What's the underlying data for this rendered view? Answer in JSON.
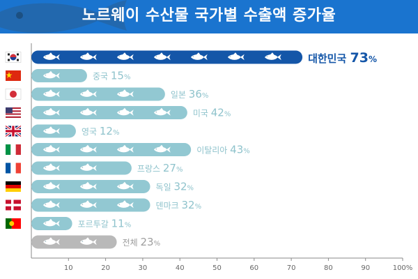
{
  "chart_data": {
    "type": "bar",
    "orientation": "horizontal",
    "title": "노르웨이 수산물 국가별 수출액 증가율",
    "categories": [
      "대한민국",
      "중국",
      "일본",
      "미국",
      "영국",
      "이탈리아",
      "프랑스",
      "독일",
      "덴마크",
      "포르투갈",
      "전체"
    ],
    "values": [
      73,
      15,
      36,
      42,
      12,
      43,
      27,
      32,
      32,
      11,
      23
    ],
    "value_suffix": "%",
    "flags": [
      "south-korea-flag",
      "china-flag",
      "japan-flag",
      "usa-flag",
      "uk-flag",
      "italy-flag",
      "france-flag",
      "germany-flag",
      "denmark-flag",
      "portugal-flag",
      ""
    ],
    "highlight_index": 0,
    "xlim": [
      0,
      100
    ],
    "xticks": [
      "10",
      "20",
      "30",
      "40",
      "50",
      "60",
      "70",
      "80",
      "90",
      "100%"
    ],
    "grid": false,
    "colors": {
      "header": "#1a74cf",
      "highlight_bar": "#1456a8",
      "bar": "#92c8d2",
      "total_bar": "#b9b9b9",
      "highlight_label": "#1456a8",
      "label": "#8fc3cc",
      "total_label": "#9e9e9e",
      "fish": "#ffffff"
    }
  }
}
